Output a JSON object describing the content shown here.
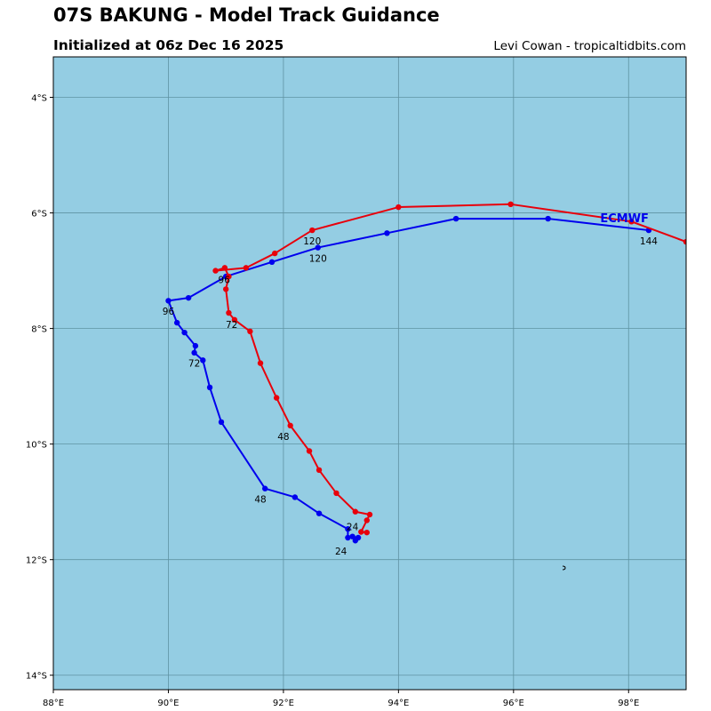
{
  "header": {
    "title": "07S BAKUNG - Model Track Guidance",
    "subtitle": "Initialized at 06z Dec 16 2025",
    "credit": "Levi Cowan - tropicaltidbits.com"
  },
  "colors": {
    "ocean": "#94cde3",
    "grid": "#5f93a3",
    "red_track": "#e8000b",
    "blue_track": "#0000ee",
    "model_label": "#0000ee"
  },
  "map": {
    "lon_range": [
      88,
      99
    ],
    "lat_range": [
      -14.25,
      -3.3
    ],
    "x_ticks": [
      {
        "value": 88,
        "label": "88°E"
      },
      {
        "value": 90,
        "label": "90°E"
      },
      {
        "value": 92,
        "label": "92°E"
      },
      {
        "value": 94,
        "label": "94°E"
      },
      {
        "value": 96,
        "label": "96°E"
      },
      {
        "value": 98,
        "label": "98°E"
      }
    ],
    "y_ticks": [
      {
        "value": -4,
        "label": "4°S"
      },
      {
        "value": -6,
        "label": "6°S"
      },
      {
        "value": -8,
        "label": "8°S"
      },
      {
        "value": -10,
        "label": "10°S"
      },
      {
        "value": -12,
        "label": "12°S"
      },
      {
        "value": -14,
        "label": "14°S"
      }
    ],
    "grid": true
  },
  "tracks": [
    {
      "color_key": "blue_track",
      "points": [
        [
          93.25,
          -11.67
        ],
        [
          93.3,
          -11.62
        ],
        [
          93.2,
          -11.6
        ],
        [
          93.12,
          -11.62
        ],
        [
          93.12,
          -11.47
        ],
        [
          92.62,
          -11.2
        ],
        [
          92.2,
          -10.92
        ],
        [
          91.68,
          -10.77
        ],
        [
          90.92,
          -9.62
        ],
        [
          90.72,
          -9.02
        ],
        [
          90.6,
          -8.55
        ],
        [
          90.45,
          -8.42
        ],
        [
          90.47,
          -8.3
        ],
        [
          90.28,
          -8.07
        ],
        [
          90.15,
          -7.9
        ],
        [
          90.0,
          -7.52
        ],
        [
          90.35,
          -7.47
        ],
        [
          91.0,
          -7.1
        ],
        [
          91.8,
          -6.85
        ],
        [
          92.6,
          -6.6
        ],
        [
          93.8,
          -6.35
        ],
        [
          95.0,
          -6.1
        ],
        [
          96.6,
          -6.1
        ],
        [
          98.35,
          -6.3
        ]
      ],
      "labels": [
        {
          "text": "24",
          "lon": 93.0,
          "lat": -11.85
        },
        {
          "text": "48",
          "lon": 91.6,
          "lat": -10.95
        },
        {
          "text": "72",
          "lon": 90.45,
          "lat": -8.6
        },
        {
          "text": "96",
          "lon": 90.0,
          "lat": -7.7
        },
        {
          "text": "120",
          "lon": 92.6,
          "lat": -6.78
        },
        {
          "text": "144",
          "lon": 98.35,
          "lat": -6.48
        }
      ]
    },
    {
      "color_key": "red_track",
      "points": [
        [
          93.45,
          -11.53
        ],
        [
          93.35,
          -11.52
        ],
        [
          93.45,
          -11.32
        ],
        [
          93.5,
          -11.22
        ],
        [
          93.25,
          -11.17
        ],
        [
          92.92,
          -10.85
        ],
        [
          92.62,
          -10.45
        ],
        [
          92.45,
          -10.12
        ],
        [
          92.12,
          -9.68
        ],
        [
          91.88,
          -9.2
        ],
        [
          91.6,
          -8.6
        ],
        [
          91.42,
          -8.05
        ],
        [
          91.15,
          -7.85
        ],
        [
          91.05,
          -7.73
        ],
        [
          91.0,
          -7.32
        ],
        [
          91.05,
          -7.1
        ],
        [
          90.98,
          -6.95
        ],
        [
          90.82,
          -7.0
        ],
        [
          91.35,
          -6.95
        ],
        [
          91.85,
          -6.7
        ],
        [
          92.5,
          -6.3
        ],
        [
          94.0,
          -5.9
        ],
        [
          95.95,
          -5.85
        ],
        [
          98.05,
          -6.15
        ],
        [
          99.0,
          -6.5
        ]
      ],
      "labels": [
        {
          "text": "24",
          "lon": 93.2,
          "lat": -11.43
        },
        {
          "text": "48",
          "lon": 92.0,
          "lat": -9.87
        },
        {
          "text": "72",
          "lon": 91.1,
          "lat": -7.93
        },
        {
          "text": "96",
          "lon": 90.97,
          "lat": -7.15
        },
        {
          "text": "120",
          "lon": 92.5,
          "lat": -6.48
        }
      ]
    }
  ],
  "model_label": {
    "text": "ECMWF",
    "lon": 98.35,
    "lat": -6.08
  }
}
